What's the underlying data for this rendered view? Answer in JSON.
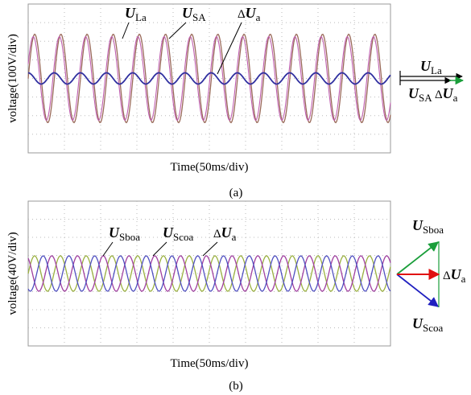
{
  "panel_a": {
    "wave_labels": [
      {
        "symbol": "U",
        "sub": "La"
      },
      {
        "symbol": "U",
        "sub": "SA"
      },
      {
        "prefix": "Δ",
        "symbol": "U",
        "sub": "a"
      }
    ],
    "y_label": "voltage(100V/div)",
    "x_label": "Time(50ms/div)",
    "caption": "(a)",
    "vector_labels": [
      {
        "symbol": "U",
        "sub": "La"
      },
      {
        "symbol": "U",
        "sub": "SA"
      },
      {
        "prefix": "Δ",
        "symbol": "U",
        "sub": "a"
      }
    ]
  },
  "panel_b": {
    "wave_labels": [
      {
        "symbol": "U",
        "sub": "Sboa"
      },
      {
        "symbol": "U",
        "sub": "Scoa"
      },
      {
        "prefix": "Δ",
        "symbol": "U",
        "sub": "a"
      }
    ],
    "y_label": "voltage(40V/div)",
    "x_label": "Time(50ms/div)",
    "caption": "(b)",
    "vector_labels": [
      {
        "symbol": "U",
        "sub": "Sboa"
      },
      {
        "prefix": "Δ",
        "symbol": "U",
        "sub": "a"
      },
      {
        "symbol": "U",
        "sub": "Scoa"
      }
    ]
  }
}
